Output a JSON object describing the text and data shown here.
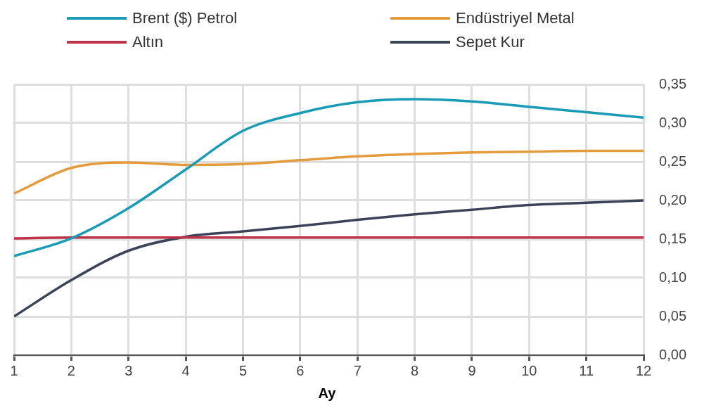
{
  "chart_data": {
    "type": "line",
    "xlabel": "Ay",
    "x": [
      1,
      2,
      3,
      4,
      5,
      6,
      7,
      8,
      9,
      10,
      11,
      12
    ],
    "xlim": [
      1,
      12
    ],
    "xticks": [
      1,
      2,
      3,
      4,
      5,
      6,
      7,
      8,
      9,
      10,
      11,
      12
    ],
    "ylim": [
      0,
      0.35
    ],
    "yticks": [
      {
        "value": 0,
        "label": "0,00"
      },
      {
        "value": 0.05,
        "label": "0,05"
      },
      {
        "value": 0.1,
        "label": "0,10"
      },
      {
        "value": 0.15,
        "label": "0,15"
      },
      {
        "value": 0.2,
        "label": "0,20"
      },
      {
        "value": 0.25,
        "label": "0,25"
      },
      {
        "value": 0.3,
        "label": "0,30"
      },
      {
        "value": 0.35,
        "label": "0,35"
      }
    ],
    "grid": true,
    "legend": "top",
    "marker": "none",
    "line_style": "solid",
    "series": [
      {
        "name": "Brent ($) Petrol",
        "color": "#1a9bb5",
        "values": [
          0.128,
          0.151,
          0.19,
          0.24,
          0.29,
          0.313,
          0.327,
          0.331,
          0.328,
          0.321,
          0.314,
          0.307
        ]
      },
      {
        "name": "Endüstriyel Metal",
        "color": "#e49b3c",
        "values": [
          0.209,
          0.242,
          0.249,
          0.246,
          0.247,
          0.252,
          0.257,
          0.26,
          0.262,
          0.263,
          0.264,
          0.264
        ]
      },
      {
        "name": "Altın",
        "color": "#c0314a",
        "values": [
          0.151,
          0.152,
          0.152,
          0.152,
          0.152,
          0.152,
          0.152,
          0.152,
          0.152,
          0.152,
          0.152,
          0.152
        ]
      },
      {
        "name": "Sepet Kur",
        "color": "#3a4358",
        "values": [
          0.05,
          0.097,
          0.135,
          0.153,
          0.16,
          0.167,
          0.175,
          0.182,
          0.188,
          0.194,
          0.197,
          0.2
        ]
      }
    ]
  }
}
